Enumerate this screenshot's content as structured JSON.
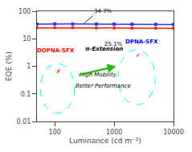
{
  "chart_data": {
    "type": "line",
    "xlabel": "Luminance (cd m⁻²)",
    "ylabel": "EQE (%)",
    "x": [
      50,
      100,
      200,
      500,
      1000,
      2000,
      5000,
      10000
    ],
    "series": [
      {
        "color": "#3333ff",
        "marker": "square",
        "values": [
          34.0,
          34.7,
          34.5,
          34.2,
          34.0,
          33.8,
          33.5,
          33.2
        ]
      },
      {
        "color": "#ff2200",
        "marker": "circle",
        "values": [
          24.8,
          25.0,
          25.1,
          24.9,
          24.7,
          24.5,
          24.2,
          23.9
        ]
      }
    ],
    "xlim": [
      50,
      10000
    ],
    "ylim": [
      0.01,
      100
    ],
    "xticks": [
      100,
      1000,
      10000
    ],
    "yticks": [
      0.01,
      0.1,
      1,
      10,
      100
    ],
    "log": true,
    "grid": false,
    "annotations": [
      {
        "text": "34.7%",
        "x": 300,
        "y": 34.5
      },
      {
        "text": "25.1%"
      },
      {
        "text": "DOPNA-SFX",
        "color": "red"
      },
      {
        "text": "DPNA-SFX",
        "color": "blue"
      },
      {
        "text": "✗",
        "color": "red"
      },
      {
        "text": "✓",
        "color": "blue"
      },
      {
        "text": "π-Extension"
      },
      {
        "text": "High Mobility"
      },
      {
        "text": "Better Performance"
      }
    ]
  }
}
